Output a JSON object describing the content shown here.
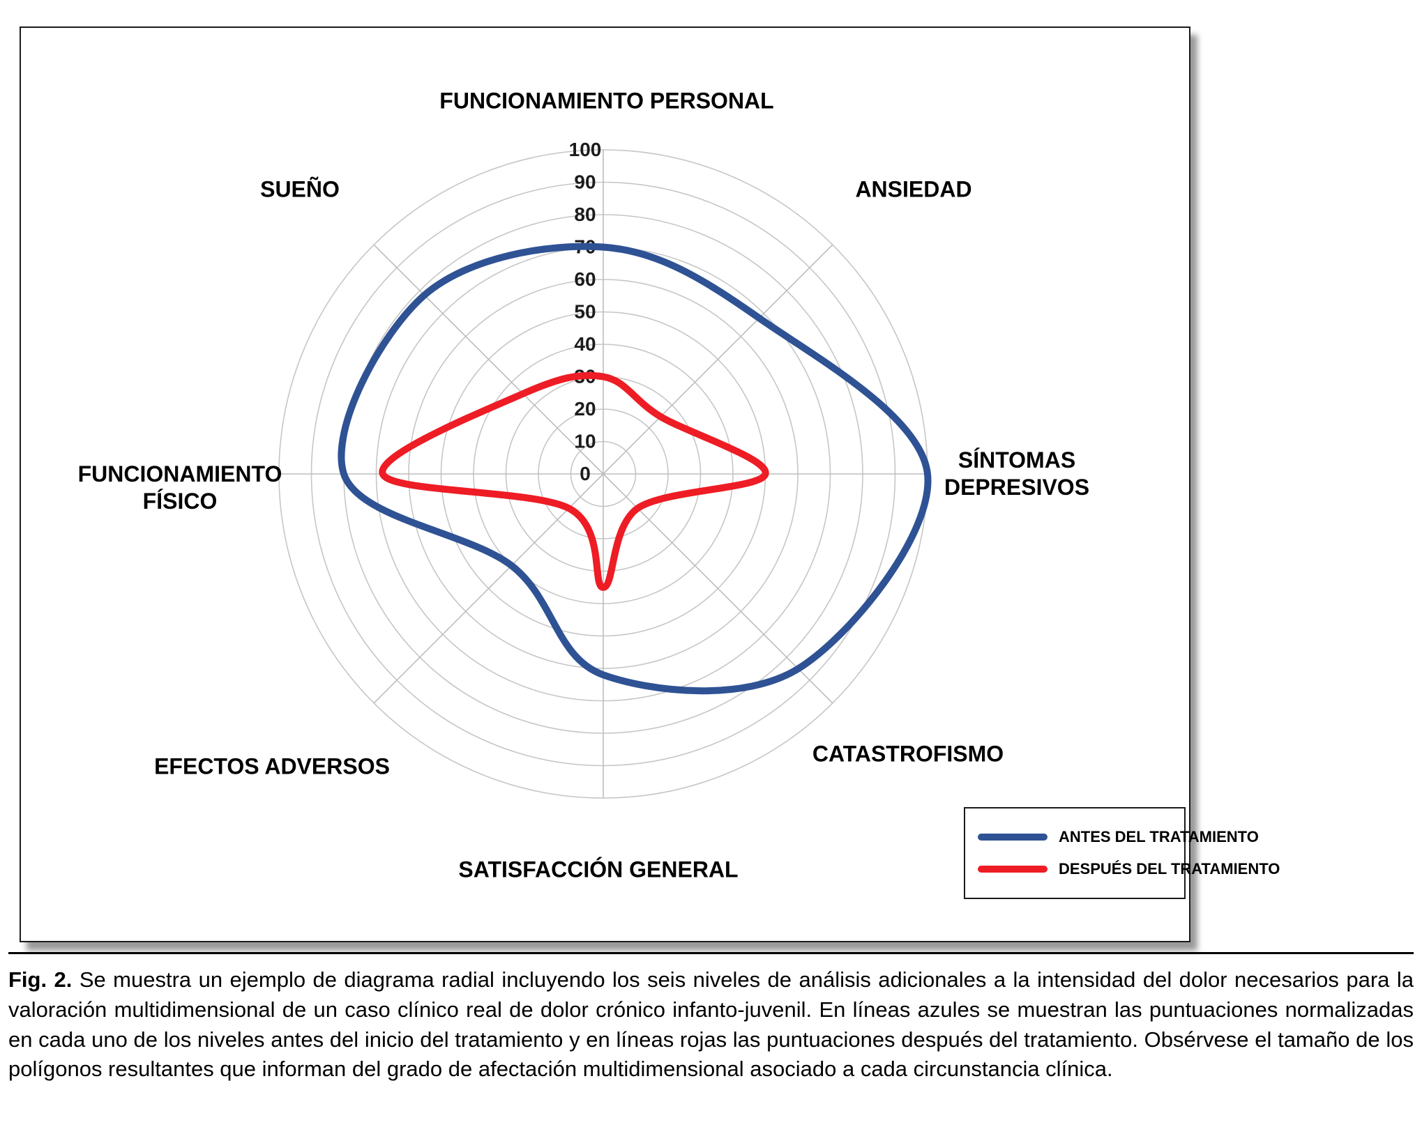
{
  "figure": {
    "caption_label": "Fig. 2.",
    "caption_text": "Se muestra un ejemplo de diagrama radial incluyendo los seis niveles de análisis adicionales a la intensidad del dolor necesarios para la valoración multidimensional de un caso clínico real de dolor crónico infanto-juvenil. En líneas azules se muestran las puntuaciones normalizadas en cada uno de los niveles antes del inicio del tratamiento y en líneas rojas las puntuaciones después del tratamiento. Obsérvese el tamaño de los polígonos resultantes que informan del grado de afectación multidimensional asociado a cada circunstancia clínica."
  },
  "axis_labels": {
    "personal": "FUNCIONAMIENTO PERSONAL",
    "sueno": "SUEÑO",
    "ansiedad": "ANSIEDAD",
    "sintomas": "SÍNTOMAS\nDEPRESIVOS",
    "fisico": "FUNCIONAMIENTO\nFÍSICO",
    "catastrofismo": "CATASTROFISMO",
    "efectos": "EFECTOS ADVERSOS",
    "satisfaccion": "SATISFACCIÓN GENERAL"
  },
  "legend": {
    "items": [
      {
        "label": "ANTES DEL TRATAMIENTO",
        "color": "#2e5294"
      },
      {
        "label": "DESPUÉS DEL TRATAMIENTO",
        "color": "#ee1c24"
      }
    ]
  },
  "chart_data": {
    "type": "radar",
    "title": "",
    "categories": [
      "FUNCIONAMIENTO PERSONAL",
      "ANSIEDAD",
      "SÍNTOMAS DEPRESIVOS",
      "CATASTROFISMO",
      "SATISFACCIÓN GENERAL",
      "EFECTOS ADVERSOS",
      "FUNCIONAMIENTO FÍSICO",
      "SUEÑO"
    ],
    "series": [
      {
        "name": "ANTES DEL TRATAMIENTO",
        "color": "#2e5294",
        "values": [
          70,
          68,
          100,
          85,
          62,
          40,
          80,
          78
        ]
      },
      {
        "name": "DESPUÉS DEL TRATAMIENTO",
        "color": "#ee1c24",
        "values": [
          30,
          25,
          50,
          15,
          35,
          15,
          68,
          35
        ]
      }
    ],
    "ticks": [
      0,
      10,
      20,
      30,
      40,
      50,
      60,
      70,
      80,
      90,
      100
    ],
    "rmax": 100,
    "grid": "circular rings every 10 units with 8 radial spokes",
    "legend_position": "bottom-right inside panel",
    "line_style": "smoothed closed curves, no fill"
  }
}
